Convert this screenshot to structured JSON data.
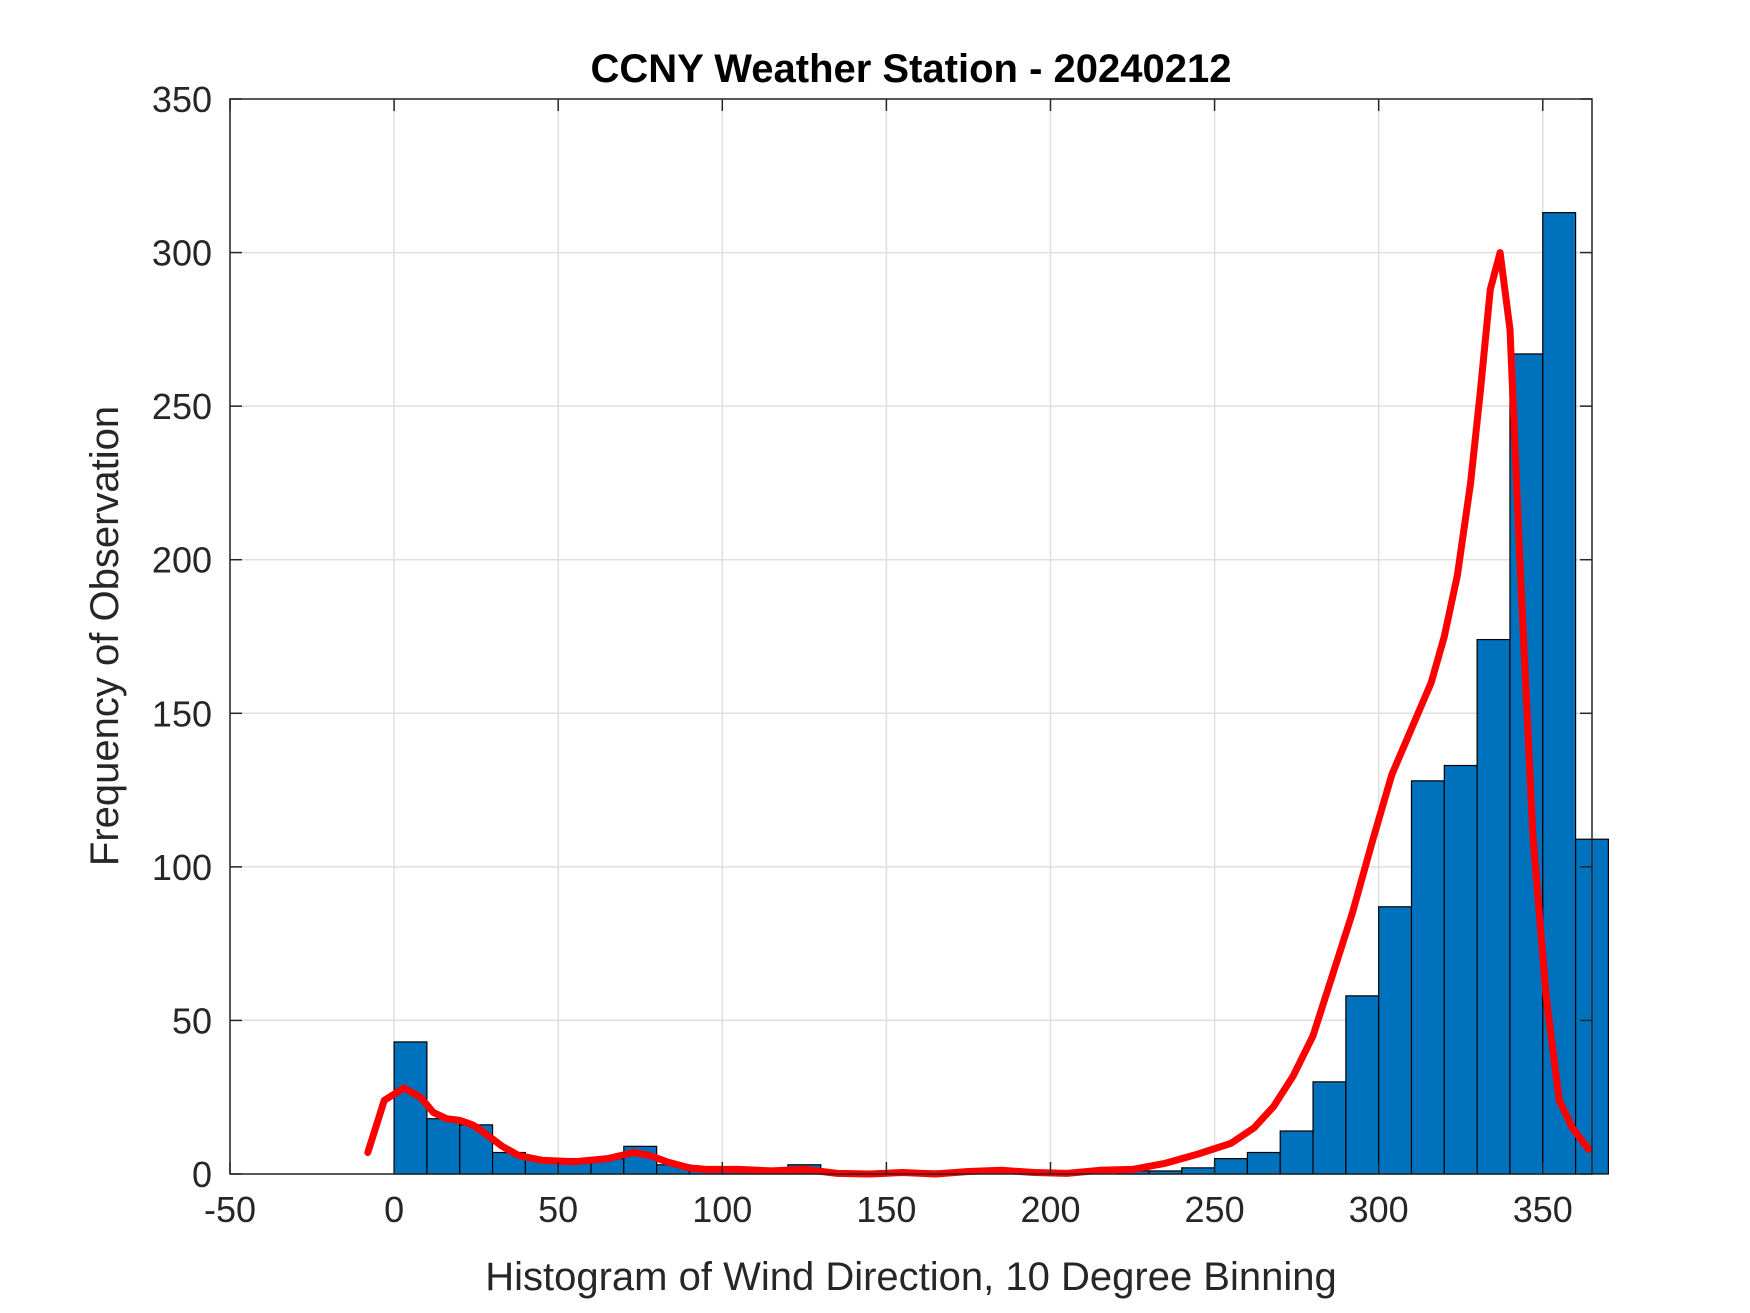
{
  "chart_data": {
    "type": "bar",
    "title": "CCNY Weather Station - 20240212",
    "xlabel": "Histogram of Wind Direction, 10 Degree Binning",
    "ylabel": "Frequency of Observation",
    "xlim": [
      -50,
      365
    ],
    "ylim": [
      0,
      350
    ],
    "xticks": [
      -50,
      0,
      50,
      100,
      150,
      200,
      250,
      300,
      350
    ],
    "yticks": [
      0,
      50,
      100,
      150,
      200,
      250,
      300,
      350
    ],
    "grid": true,
    "colors": {
      "bars": "#0072BD",
      "bar_edge": "#000000",
      "curve": "#FF0000",
      "grid": "#DFDFDF"
    },
    "bins": {
      "width": 10,
      "edges_start": 0,
      "counts": [
        43,
        18,
        16,
        7,
        5,
        5,
        5,
        9,
        3,
        2,
        2,
        1,
        3,
        0,
        0,
        0,
        1,
        0,
        0,
        1,
        0,
        0,
        1,
        1,
        2,
        5,
        7,
        14,
        30,
        58,
        87,
        128,
        133,
        174,
        267,
        313,
        109
      ]
    },
    "series": [
      {
        "type": "line",
        "x": [
          -8,
          -3,
          3,
          8,
          12,
          16,
          20,
          24,
          28,
          33,
          38,
          45,
          55,
          65,
          73,
          78,
          83,
          90,
          95,
          105,
          115,
          125,
          135,
          145,
          155,
          165,
          175,
          185,
          195,
          205,
          215,
          225,
          235,
          245,
          255,
          262,
          268,
          274,
          280,
          286,
          292,
          298,
          304,
          310,
          316,
          320,
          324,
          328,
          331,
          334,
          337,
          340,
          343,
          347,
          351,
          355,
          359,
          364
        ],
        "y": [
          7,
          24,
          28,
          25,
          20,
          18,
          17.5,
          16,
          13,
          9,
          6,
          4.5,
          4,
          5,
          7,
          6,
          4,
          2,
          1.5,
          1.5,
          1,
          1.5,
          0.2,
          0,
          0.5,
          0,
          0.8,
          1.2,
          0.5,
          0.2,
          1.2,
          1.5,
          3.5,
          6.5,
          10,
          15,
          22,
          32,
          45,
          65,
          85,
          108,
          130,
          145,
          160,
          175,
          195,
          225,
          255,
          288,
          300,
          275,
          200,
          110,
          58,
          24,
          15,
          8
        ]
      }
    ]
  }
}
